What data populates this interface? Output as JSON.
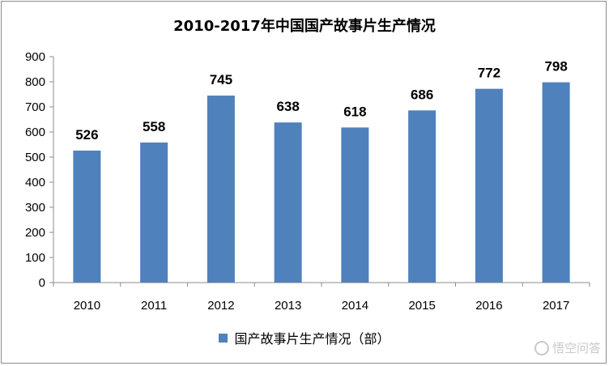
{
  "chart_data": {
    "type": "bar",
    "title": "2010-2017年中国国产故事片生产情况",
    "categories": [
      "2010",
      "2011",
      "2012",
      "2013",
      "2014",
      "2015",
      "2016",
      "2017"
    ],
    "series": [
      {
        "name": "国产故事片生产情况（部）",
        "values": [
          526,
          558,
          745,
          638,
          618,
          686,
          772,
          798
        ]
      }
    ],
    "ylim": [
      0,
      900
    ],
    "yticks": [
      0,
      100,
      200,
      300,
      400,
      500,
      600,
      700,
      800,
      900
    ],
    "grid": false,
    "legend": "bottom",
    "colors": {
      "bar": "#4f81bd",
      "axis": "#8c8c8c"
    }
  },
  "watermark": "悟空问答"
}
